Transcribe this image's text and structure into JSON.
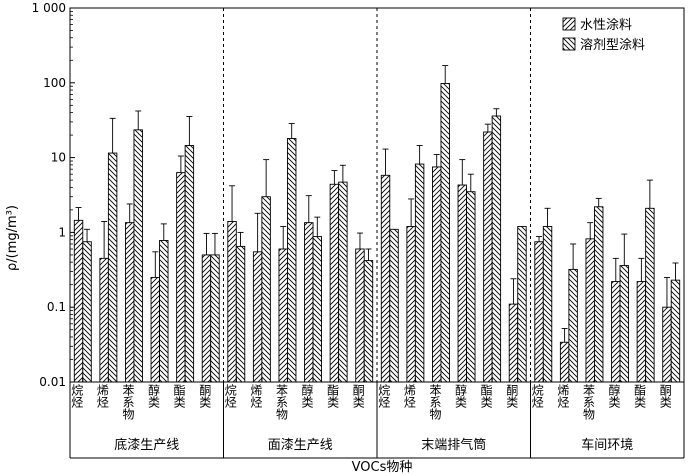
{
  "chart_data": {
    "type": "bar",
    "ylabel": "ρ/(mg/m³)",
    "xlabel": "VOCs物种",
    "y_scale": "log",
    "ylim": [
      0.01,
      1000
    ],
    "y_ticks": [
      {
        "value": 0.01,
        "label": "0.01"
      },
      {
        "value": 0.1,
        "label": "0.1"
      },
      {
        "value": 1,
        "label": "1"
      },
      {
        "value": 10,
        "label": "10"
      },
      {
        "value": 100,
        "label": "100"
      },
      {
        "value": 1000,
        "label": "1 000"
      }
    ],
    "legend_position": "top-right",
    "legend": [
      {
        "name": "水性涂料",
        "hatch": "diagonal-up"
      },
      {
        "name": "溶剂型涂料",
        "hatch": "diagonal-down"
      }
    ],
    "groups": [
      {
        "name": "底漆生产线",
        "categories": [
          "烷烃",
          "烯烃",
          "苯系物",
          "醇类",
          "酯类",
          "酮类"
        ],
        "series": [
          {
            "name": "水性涂料",
            "values": [
              1.45,
              0.45,
              1.35,
              0.25,
              6.3,
              0.5
            ],
            "errors": [
              2.15,
              1.4,
              2.4,
              0.55,
              10.5,
              0.97
            ]
          },
          {
            "name": "溶剂型涂料",
            "values": [
              0.75,
              11.5,
              23.5,
              0.78,
              14.5,
              0.5
            ],
            "errors": [
              1.1,
              33.5,
              42,
              1.3,
              35.5,
              0.97
            ]
          }
        ]
      },
      {
        "name": "面漆生产线",
        "categories": [
          "烷烃",
          "烯烃",
          "苯系物",
          "醇类",
          "酯类",
          "酮类"
        ],
        "series": [
          {
            "name": "水性涂料",
            "values": [
              1.4,
              0.55,
              0.6,
              1.35,
              4.4,
              0.6
            ],
            "errors": [
              4.2,
              1.8,
              1.2,
              3.1,
              6.7,
              0.98
            ]
          },
          {
            "name": "溶剂型涂料",
            "values": [
              0.65,
              3.0,
              18.0,
              0.88,
              4.7,
              0.42
            ],
            "errors": [
              1.0,
              9.4,
              28.5,
              1.6,
              7.9,
              0.6
            ]
          }
        ]
      },
      {
        "name": "末端排气筒",
        "categories": [
          "烷烃",
          "烯烃",
          "苯系物",
          "醇类",
          "酯类",
          "酮类"
        ],
        "series": [
          {
            "name": "水性涂料",
            "values": [
              5.8,
              1.2,
              7.5,
              4.3,
              22.0,
              0.11
            ],
            "errors": [
              13.0,
              2.8,
              11.0,
              9.4,
              28.0,
              0.24
            ]
          },
          {
            "name": "溶剂型涂料",
            "values": [
              1.1,
              8.2,
              98.0,
              3.5,
              36.0,
              1.2
            ],
            "errors": [
              1.1,
              14.5,
              170.0,
              6.0,
              45.0,
              1.2
            ]
          }
        ]
      },
      {
        "name": "车间环境",
        "categories": [
          "烷烃",
          "烯烃",
          "苯系物",
          "醇类",
          "酯类",
          "酮类"
        ],
        "series": [
          {
            "name": "水性涂料",
            "values": [
              0.75,
              0.034,
              0.82,
              0.22,
              0.22,
              0.1
            ],
            "errors": [
              0.88,
              0.052,
              1.35,
              0.45,
              0.45,
              0.25
            ]
          },
          {
            "name": "溶剂型涂料",
            "values": [
              1.2,
              0.32,
              2.2,
              0.36,
              2.1,
              0.23
            ],
            "errors": [
              2.1,
              0.7,
              2.85,
              0.95,
              5.0,
              0.39
            ]
          }
        ]
      }
    ]
  }
}
